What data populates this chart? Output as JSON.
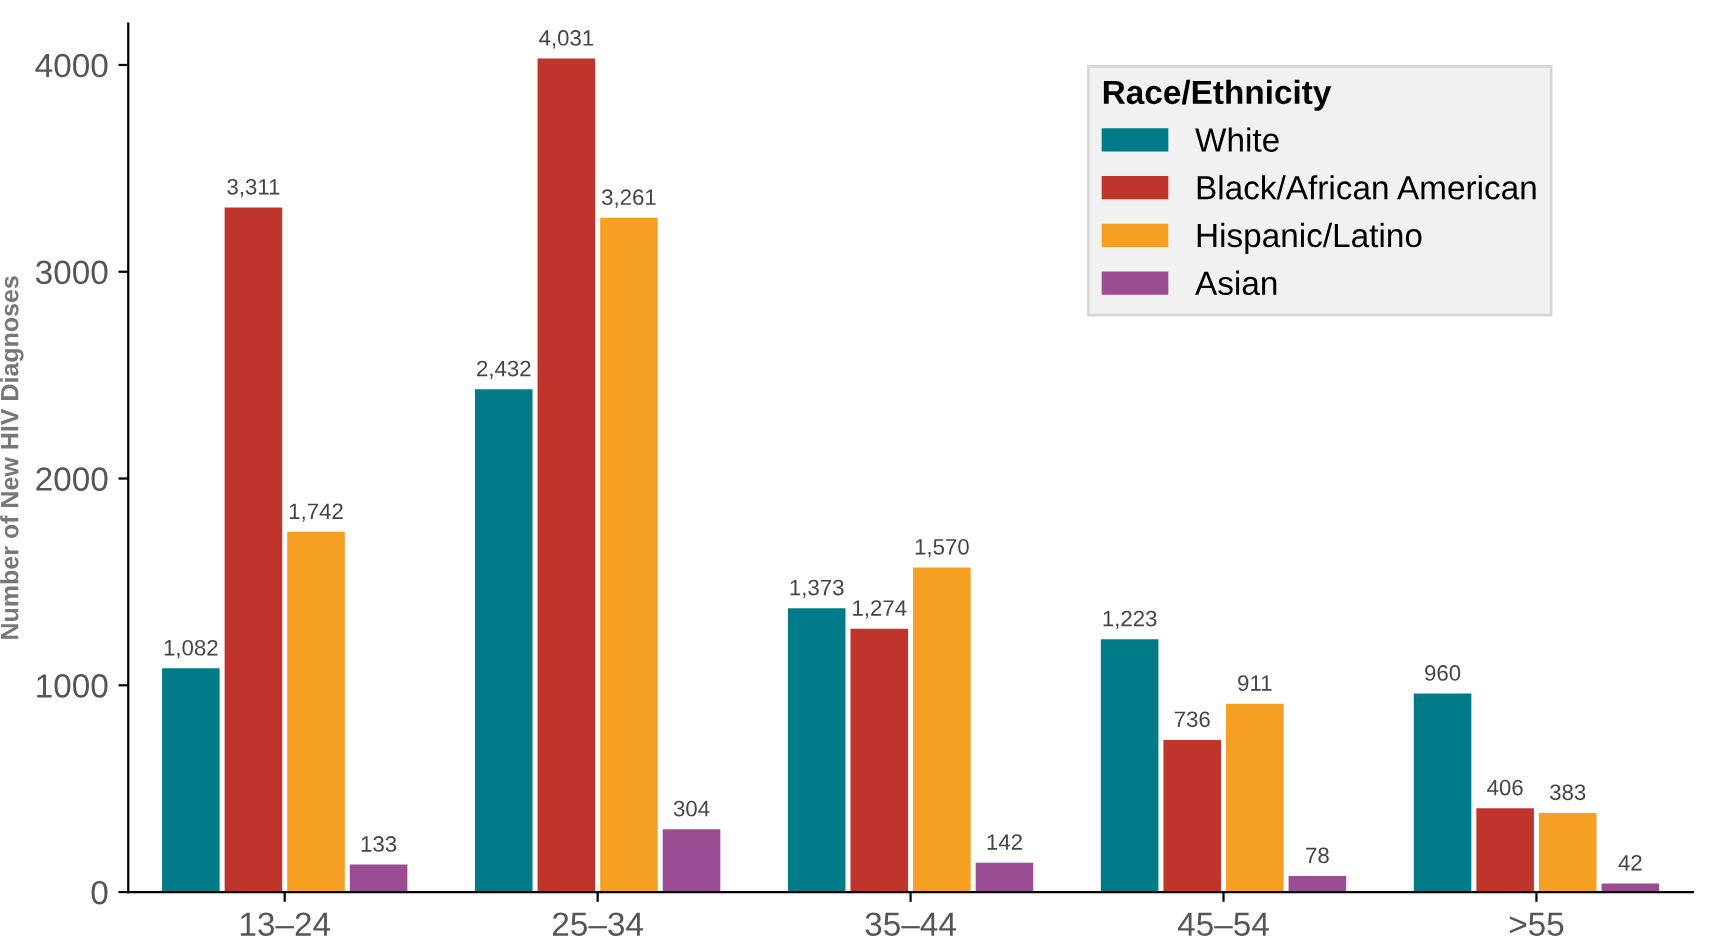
{
  "chart_data": {
    "type": "bar",
    "ylabel": "Number of New HIV Diagnoses",
    "legend_title": "Race/Ethnicity",
    "categories": [
      "13–24",
      "25–34",
      "35–44",
      "45–54",
      ">55"
    ],
    "series": [
      {
        "name": "White",
        "color": "#007b87",
        "values": [
          1082,
          2432,
          1373,
          1223,
          960
        ],
        "value_labels": [
          "1,082",
          "2,432",
          "1,373",
          "1,223",
          "960"
        ]
      },
      {
        "name": "Black/African American",
        "color": "#c0352b",
        "values": [
          3311,
          4031,
          1274,
          736,
          406
        ],
        "value_labels": [
          "3,311",
          "4,031",
          "1,274",
          "736",
          "406"
        ]
      },
      {
        "name": "Hispanic/Latino",
        "color": "#f5a023",
        "values": [
          1742,
          3261,
          1570,
          911,
          383
        ],
        "value_labels": [
          "1,742",
          "3,261",
          "1,570",
          "911",
          "383"
        ]
      },
      {
        "name": "Asian",
        "color": "#9b4d94",
        "values": [
          133,
          304,
          142,
          78,
          42
        ],
        "value_labels": [
          "133",
          "304",
          "142",
          "78",
          "42"
        ]
      }
    ],
    "ylim": [
      0,
      4200
    ],
    "yticks": [
      0,
      1000,
      2000,
      3000,
      4000
    ],
    "grid": false,
    "legend": "top right"
  }
}
